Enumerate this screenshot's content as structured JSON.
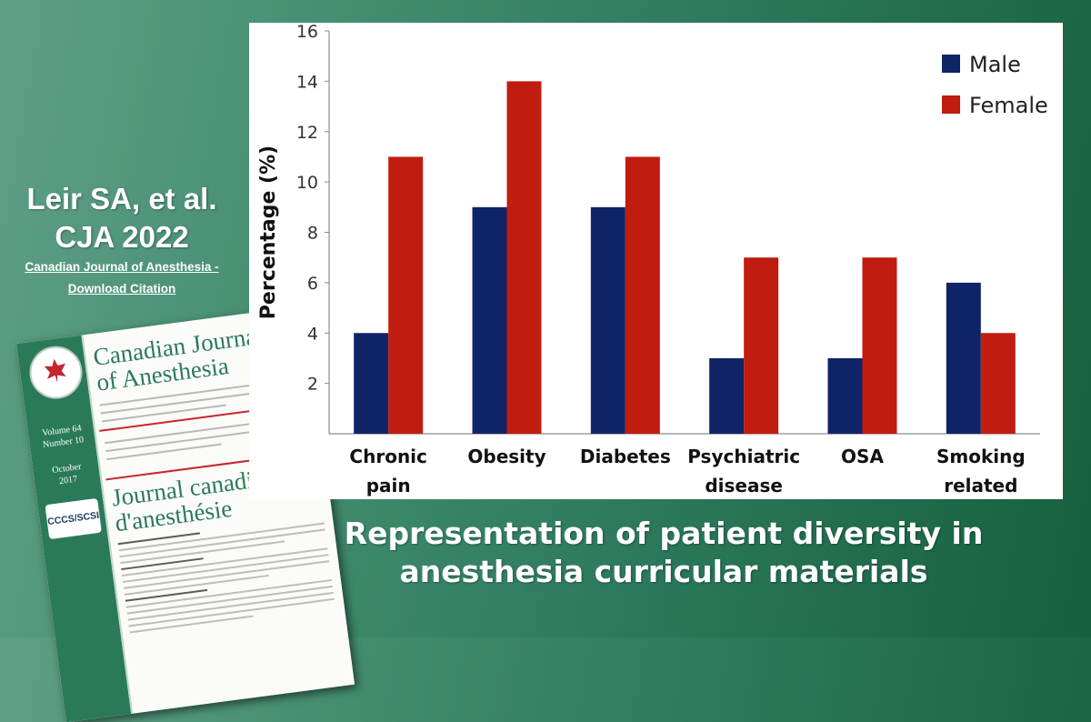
{
  "citation": {
    "line1": "Leir SA, et al.",
    "line2": "CJA 2022",
    "link1": "Canadian Journal of Anesthesia -",
    "link2": "Download Citation "
  },
  "cover": {
    "title_en_1": "Canadian Journal",
    "title_en_2": "of Anesthesia",
    "title_fr_1": "Journal canadien",
    "title_fr_2": "d'anesthésie",
    "volume": "Volume 64",
    "number": "Number 10",
    "month": "October",
    "year": "2017",
    "badge": "CCCS/SCSI"
  },
  "caption": {
    "line1": "Representation of patient diversity in",
    "line2": "anesthesia curricular materials"
  },
  "colors": {
    "male": "#0f2467",
    "female": "#c01c10"
  },
  "chart_data": {
    "type": "bar",
    "categories": [
      [
        "Chronic",
        "pain"
      ],
      [
        "Obesity"
      ],
      [
        "Diabetes"
      ],
      [
        "Psychiatric",
        "disease"
      ],
      [
        "OSA"
      ],
      [
        "Smoking",
        "related"
      ]
    ],
    "series": [
      {
        "name": "Male",
        "values": [
          4,
          9,
          9,
          3,
          3,
          6
        ]
      },
      {
        "name": "Female",
        "values": [
          11,
          14,
          11,
          7,
          7,
          4
        ]
      }
    ],
    "ylabel": "Percentage (%)",
    "ylim": [
      0,
      16
    ],
    "yticks": [
      2,
      4,
      6,
      8,
      10,
      12,
      14,
      16
    ],
    "grid": false,
    "legend": "top-right"
  }
}
